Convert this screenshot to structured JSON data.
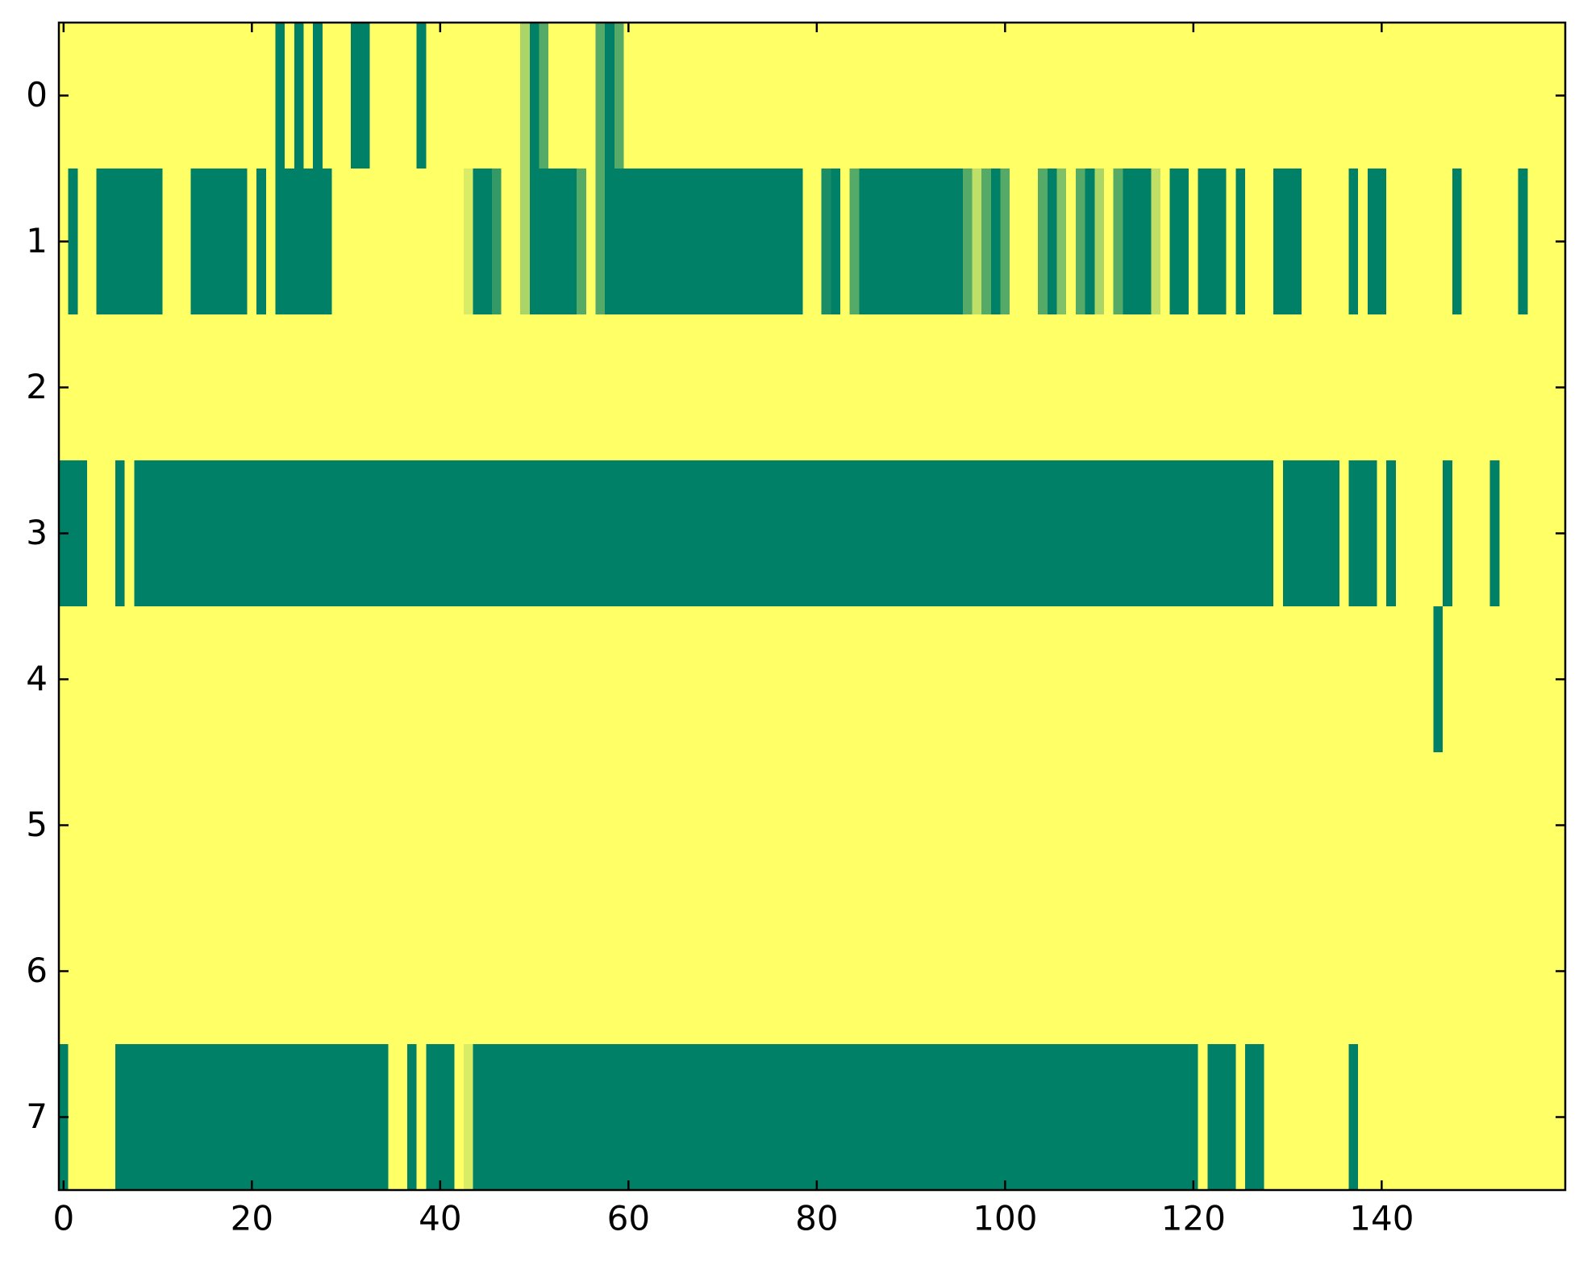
{
  "chart_data": {
    "type": "heatmap",
    "colormap": "summer",
    "colors": [
      "#008066",
      "#ffff66"
    ],
    "clim": [
      0,
      1
    ],
    "xlim": [
      -0.5,
      159.5
    ],
    "ylim": [
      7.5,
      -0.5
    ],
    "xticks": [
      0,
      20,
      40,
      60,
      80,
      100,
      120,
      140
    ],
    "yticks": [
      0,
      1,
      2,
      3,
      4,
      5,
      6,
      7
    ],
    "z": [
      [
        1,
        1,
        1,
        1,
        1,
        1,
        1,
        1,
        1,
        1,
        1,
        1,
        1,
        1,
        1,
        1,
        1,
        1,
        1,
        1,
        1,
        1,
        1,
        0,
        1,
        0,
        1,
        0,
        1,
        1,
        1,
        0,
        0,
        1,
        1,
        1,
        1,
        1,
        0,
        1,
        1,
        1,
        1,
        1,
        1,
        1,
        1,
        1,
        1,
        0.67,
        0,
        0.33,
        1,
        1,
        1,
        1,
        1,
        0.33,
        0,
        0.33,
        1,
        1,
        1,
        1,
        1,
        1,
        1,
        1,
        1,
        1,
        1,
        1,
        1,
        1,
        1,
        1,
        1,
        1,
        1,
        1,
        1,
        1,
        1,
        1,
        1,
        1,
        1,
        1,
        1,
        1,
        1,
        1,
        1,
        1,
        1,
        1,
        1,
        1,
        1,
        1,
        1,
        1,
        1,
        1,
        1,
        1,
        1,
        1,
        1,
        1,
        1,
        1,
        1,
        1,
        1,
        1,
        1,
        1,
        1,
        1,
        1,
        1,
        1,
        1,
        1,
        1,
        1,
        1,
        1,
        1,
        1,
        1,
        1,
        1,
        1,
        1,
        1,
        1,
        1,
        1,
        1,
        1,
        1,
        1,
        1,
        1,
        1,
        1,
        1,
        1,
        1,
        1,
        1,
        1,
        1,
        1,
        1,
        1,
        1,
        1
      ],
      [
        1,
        0,
        1,
        1,
        0,
        0,
        0,
        0,
        0,
        0,
        0,
        1,
        1,
        1,
        0,
        0,
        0,
        0,
        0,
        0,
        1,
        0,
        1,
        0,
        0,
        0,
        0,
        0,
        0,
        1,
        1,
        1,
        1,
        1,
        1,
        1,
        1,
        1,
        1,
        1,
        1,
        1,
        1,
        0.85,
        0,
        0,
        0.2,
        1,
        1,
        0.67,
        0,
        0,
        0,
        0,
        0,
        0.33,
        1,
        0.33,
        0,
        0,
        0,
        0,
        0,
        0,
        0,
        0,
        0,
        0,
        0,
        0,
        0,
        0,
        0,
        0,
        0,
        0,
        0,
        0,
        0,
        1,
        1,
        0.1,
        0,
        1,
        0.33,
        0,
        0,
        0,
        0,
        0,
        0,
        0,
        0,
        0,
        0,
        0,
        0.33,
        0.75,
        0.33,
        0,
        0.33,
        1,
        1,
        1,
        0.33,
        0,
        0.5,
        1,
        0.33,
        0,
        0.67,
        1,
        0.33,
        0,
        0,
        0,
        0.75,
        1,
        0,
        0,
        1,
        0,
        0,
        0,
        1,
        0,
        1,
        1,
        1,
        0,
        0,
        0,
        1,
        1,
        1,
        1,
        1,
        0,
        1,
        0,
        0,
        1,
        1,
        1,
        1,
        1,
        1,
        1,
        0,
        1,
        1,
        1,
        1,
        1,
        1,
        0,
        1,
        1,
        1,
        1
      ],
      [
        1,
        1,
        1,
        1,
        1,
        1,
        1,
        1,
        1,
        1,
        1,
        1,
        1,
        1,
        1,
        1,
        1,
        1,
        1,
        1,
        1,
        1,
        1,
        1,
        1,
        1,
        1,
        1,
        1,
        1,
        1,
        1,
        1,
        1,
        1,
        1,
        1,
        1,
        1,
        1,
        1,
        1,
        1,
        1,
        1,
        1,
        1,
        1,
        1,
        1,
        1,
        1,
        1,
        1,
        1,
        1,
        1,
        1,
        1,
        1,
        1,
        1,
        1,
        1,
        1,
        1,
        1,
        1,
        1,
        1,
        1,
        1,
        1,
        1,
        1,
        1,
        1,
        1,
        1,
        1,
        1,
        1,
        1,
        1,
        1,
        1,
        1,
        1,
        1,
        1,
        1,
        1,
        1,
        1,
        1,
        1,
        1,
        1,
        1,
        1,
        1,
        1,
        1,
        1,
        1,
        1,
        1,
        1,
        1,
        1,
        1,
        1,
        1,
        1,
        1,
        1,
        1,
        1,
        1,
        1,
        1,
        1,
        1,
        1,
        1,
        1,
        1,
        1,
        1,
        1,
        1,
        1,
        1,
        1,
        1,
        1,
        1,
        1,
        1,
        1,
        1,
        1,
        1,
        1,
        1,
        1,
        1,
        1,
        1,
        1,
        1,
        1,
        1,
        1,
        1,
        1,
        1,
        1,
        1,
        1
      ],
      [
        0,
        0,
        0,
        1,
        1,
        1,
        0,
        1,
        0,
        0,
        0,
        0,
        0,
        0,
        0,
        0,
        0,
        0,
        0,
        0,
        0,
        0,
        0,
        0,
        0,
        0,
        0,
        0,
        0,
        0,
        0,
        0,
        0,
        0,
        0,
        0,
        0,
        0,
        0,
        0,
        0,
        0,
        0,
        0,
        0,
        0,
        0,
        0,
        0,
        0,
        0,
        0,
        0,
        0,
        0,
        0,
        0,
        0,
        0,
        0,
        0,
        0,
        0,
        0,
        0,
        0,
        0,
        0,
        0,
        0,
        0,
        0,
        0,
        0,
        0,
        0,
        0,
        0,
        0,
        0,
        0,
        0,
        0,
        0,
        0,
        0,
        0,
        0,
        0,
        0,
        0,
        0,
        0,
        0,
        0,
        0,
        0,
        0,
        0,
        0,
        0,
        0,
        0,
        0,
        0,
        0,
        0,
        0,
        0,
        0,
        0,
        0,
        0,
        0,
        0,
        0,
        0,
        0,
        0,
        0,
        0,
        0,
        0,
        0,
        0,
        0,
        0,
        0,
        0,
        1,
        0,
        0,
        0,
        0,
        0,
        0,
        1,
        0,
        0,
        0,
        1,
        0,
        1,
        1,
        1,
        1,
        1,
        0,
        1,
        1,
        1,
        1,
        0,
        1,
        1,
        1,
        1,
        1,
        1,
        1
      ],
      [
        1,
        1,
        1,
        1,
        1,
        1,
        1,
        1,
        1,
        1,
        1,
        1,
        1,
        1,
        1,
        1,
        1,
        1,
        1,
        1,
        1,
        1,
        1,
        1,
        1,
        1,
        1,
        1,
        1,
        1,
        1,
        1,
        1,
        1,
        1,
        1,
        1,
        1,
        1,
        1,
        1,
        1,
        1,
        1,
        1,
        1,
        1,
        1,
        1,
        1,
        1,
        1,
        1,
        1,
        1,
        1,
        1,
        1,
        1,
        1,
        1,
        1,
        1,
        1,
        1,
        1,
        1,
        1,
        1,
        1,
        1,
        1,
        1,
        1,
        1,
        1,
        1,
        1,
        1,
        1,
        1,
        1,
        1,
        1,
        1,
        1,
        1,
        1,
        1,
        1,
        1,
        1,
        1,
        1,
        1,
        1,
        1,
        1,
        1,
        1,
        1,
        1,
        1,
        1,
        1,
        1,
        1,
        1,
        1,
        1,
        1,
        1,
        1,
        1,
        1,
        1,
        1,
        1,
        1,
        1,
        1,
        1,
        1,
        1,
        1,
        1,
        1,
        1,
        1,
        1,
        1,
        1,
        1,
        1,
        1,
        1,
        1,
        1,
        1,
        1,
        1,
        1,
        1,
        1,
        1,
        1,
        0,
        1,
        1,
        1,
        1,
        1,
        1,
        1,
        1,
        1,
        1,
        1,
        1,
        1
      ],
      [
        1,
        1,
        1,
        1,
        1,
        1,
        1,
        1,
        1,
        1,
        1,
        1,
        1,
        1,
        1,
        1,
        1,
        1,
        1,
        1,
        1,
        1,
        1,
        1,
        1,
        1,
        1,
        1,
        1,
        1,
        1,
        1,
        1,
        1,
        1,
        1,
        1,
        1,
        1,
        1,
        1,
        1,
        1,
        1,
        1,
        1,
        1,
        1,
        1,
        1,
        1,
        1,
        1,
        1,
        1,
        1,
        1,
        1,
        1,
        1,
        1,
        1,
        1,
        1,
        1,
        1,
        1,
        1,
        1,
        1,
        1,
        1,
        1,
        1,
        1,
        1,
        1,
        1,
        1,
        1,
        1,
        1,
        1,
        1,
        1,
        1,
        1,
        1,
        1,
        1,
        1,
        1,
        1,
        1,
        1,
        1,
        1,
        1,
        1,
        1,
        1,
        1,
        1,
        1,
        1,
        1,
        1,
        1,
        1,
        1,
        1,
        1,
        1,
        1,
        1,
        1,
        1,
        1,
        1,
        1,
        1,
        1,
        1,
        1,
        1,
        1,
        1,
        1,
        1,
        1,
        1,
        1,
        1,
        1,
        1,
        1,
        1,
        1,
        1,
        1,
        1,
        1,
        1,
        1,
        1,
        1,
        1,
        1,
        1,
        1,
        1,
        1,
        1,
        1,
        1,
        1,
        1,
        1,
        1,
        1
      ],
      [
        1,
        1,
        1,
        1,
        1,
        1,
        1,
        1,
        1,
        1,
        1,
        1,
        1,
        1,
        1,
        1,
        1,
        1,
        1,
        1,
        1,
        1,
        1,
        1,
        1,
        1,
        1,
        1,
        1,
        1,
        1,
        1,
        1,
        1,
        1,
        1,
        1,
        1,
        1,
        1,
        1,
        1,
        1,
        1,
        1,
        1,
        1,
        1,
        1,
        1,
        1,
        1,
        1,
        1,
        1,
        1,
        1,
        1,
        1,
        1,
        1,
        1,
        1,
        1,
        1,
        1,
        1,
        1,
        1,
        1,
        1,
        1,
        1,
        1,
        1,
        1,
        1,
        1,
        1,
        1,
        1,
        1,
        1,
        1,
        1,
        1,
        1,
        1,
        1,
        1,
        1,
        1,
        1,
        1,
        1,
        1,
        1,
        1,
        1,
        1,
        1,
        1,
        1,
        1,
        1,
        1,
        1,
        1,
        1,
        1,
        1,
        1,
        1,
        1,
        1,
        1,
        1,
        1,
        1,
        1,
        1,
        1,
        1,
        1,
        1,
        1,
        1,
        1,
        1,
        1,
        1,
        1,
        1,
        1,
        1,
        1,
        1,
        1,
        1,
        1,
        1,
        1,
        1,
        1,
        1,
        1,
        1,
        1,
        1,
        1,
        1,
        1,
        1,
        1,
        1,
        1,
        1,
        1,
        1,
        1
      ],
      [
        0,
        1,
        1,
        1,
        1,
        1,
        0,
        0,
        0,
        0,
        0,
        0,
        0,
        0,
        0,
        0,
        0,
        0,
        0,
        0,
        0,
        0,
        0,
        0,
        0,
        0,
        0,
        0,
        0,
        0,
        0,
        0,
        0,
        0,
        0,
        1,
        1,
        0,
        1,
        0,
        0,
        0,
        1,
        0.85,
        0,
        0,
        0,
        0,
        0,
        0,
        0,
        0,
        0,
        0,
        0,
        0,
        0,
        0,
        0,
        0,
        0,
        0,
        0,
        0,
        0,
        0,
        0,
        0,
        0,
        0,
        0,
        0,
        0,
        0,
        0,
        0,
        0,
        0,
        0,
        0,
        0,
        0,
        0,
        0,
        0,
        0,
        0,
        0,
        0,
        0,
        0,
        0,
        0,
        0,
        0,
        0,
        0,
        0,
        0,
        0,
        0,
        0,
        0,
        0,
        0,
        0,
        0,
        0,
        0,
        0,
        0,
        0,
        0,
        0,
        0,
        0,
        0,
        0,
        0,
        0,
        0,
        1,
        0,
        0,
        0,
        1,
        0,
        0,
        1,
        1,
        1,
        1,
        1,
        1,
        1,
        1,
        1,
        0,
        1,
        1,
        1,
        1,
        1,
        1,
        1,
        1,
        1,
        1,
        1,
        1,
        1,
        1,
        1,
        1,
        1,
        1,
        1,
        1,
        1,
        1
      ]
    ]
  }
}
